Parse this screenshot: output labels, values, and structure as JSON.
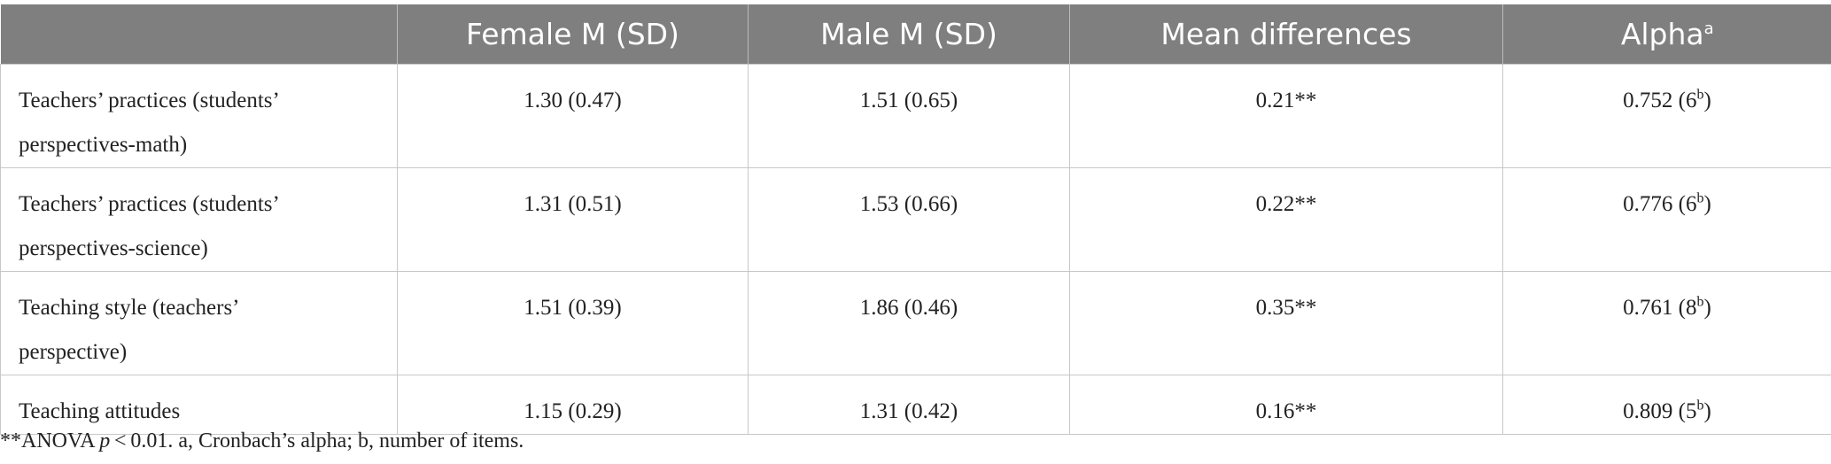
{
  "table": {
    "header": [
      "",
      "Female M (SD)",
      "Male M (SD)",
      "Mean differences",
      {
        "text": "Alpha",
        "sup": "a"
      }
    ],
    "rows": [
      [
        "Teachers’ practices (students’ perspectives-math)",
        "1.30 (0.47)",
        "1.51 (0.65)",
        "0.21**",
        {
          "pre": "0.752 (6",
          "sup": "b",
          "post": ")"
        }
      ],
      [
        "Teachers’ practices (students’ perspectives-science)",
        "1.31 (0.51)",
        "1.53 (0.66)",
        "0.22**",
        {
          "pre": "0.776 (6",
          "sup": "b",
          "post": ")"
        }
      ],
      [
        "Teaching style (teachers’ perspective)",
        "1.51 (0.39)",
        "1.86 (0.46)",
        "0.35**",
        {
          "pre": "0.761 (8",
          "sup": "b",
          "post": ")"
        }
      ],
      [
        "Teaching attitudes",
        "1.15 (0.29)",
        "1.31 (0.42)",
        "0.16**",
        {
          "pre": "0.809 (5",
          "sup": "b",
          "post": ")"
        }
      ]
    ]
  },
  "footnote": {
    "pre": "**ANOVA ",
    "italic": "p",
    "post": " < 0.01. a, Cronbach’s alpha; b, number of items."
  }
}
